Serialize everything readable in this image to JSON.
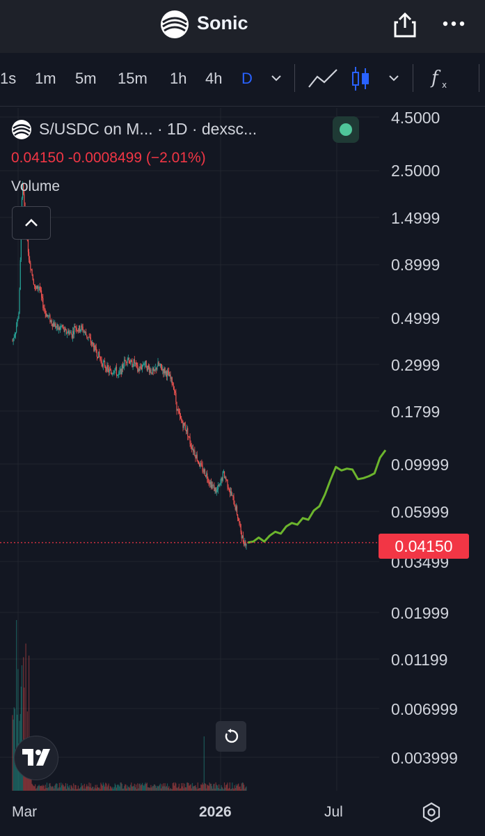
{
  "header": {
    "title": "Sonic"
  },
  "toolbar": {
    "timeframes": [
      "1s",
      "1m",
      "5m",
      "15m",
      "1h",
      "4h",
      "D"
    ],
    "active_timeframe": "D"
  },
  "legend": {
    "title": "S/USDC on M... · 1D · dexsc...",
    "price_line": "0.04150  -0.0008499 (−2.01%)",
    "volume_label": "Volume"
  },
  "price_axis": [
    "4.5000",
    "2.5000",
    "1.4999",
    "0.8999",
    "0.4999",
    "0.2999",
    "0.1799",
    "0.09999",
    "0.05999",
    "0.03499",
    "0.01999",
    "0.01199",
    "0.006999",
    "0.003999"
  ],
  "current_price": "0.04150",
  "time_axis": [
    "Mar",
    "2026",
    "Jul"
  ],
  "colors": {
    "up": "#26a69a",
    "down": "#ef5350",
    "projection": "#6cb52d",
    "accent": "#2962ff",
    "price_tag": "#f23645"
  },
  "chart_data": {
    "type": "line",
    "title": "S/USDC on M... · 1D · dexsc...",
    "xlabel": "",
    "ylabel": "",
    "y_scale": "log",
    "ylim": [
      0.0035,
      5.5
    ],
    "x_ticks": [
      "Mar",
      "2026",
      "Jul"
    ],
    "series": [
      {
        "values": [
          0.42,
          0.48,
          0.6,
          2.6,
          1.6,
          1.1,
          0.9,
          0.75,
          0.8,
          0.66,
          0.58,
          0.55,
          0.52,
          0.5,
          0.48,
          0.5,
          0.46,
          0.47,
          0.45,
          0.5,
          0.48,
          0.49,
          0.46,
          0.44,
          0.41,
          0.38,
          0.36,
          0.33,
          0.32,
          0.3,
          0.29,
          0.31,
          0.28,
          0.3,
          0.33,
          0.35,
          0.32,
          0.33,
          0.3,
          0.31,
          0.33,
          0.31,
          0.3,
          0.29,
          0.32,
          0.31,
          0.3,
          0.29,
          0.27,
          0.25,
          0.19,
          0.17,
          0.16,
          0.15,
          0.13,
          0.12,
          0.11,
          0.1,
          0.095,
          0.09,
          0.083,
          0.078,
          0.075,
          0.08,
          0.092,
          0.085,
          0.075,
          0.068,
          0.06,
          0.05,
          0.0425,
          0.0415
        ]
      },
      {
        "values": [
          0.0415,
          0.042,
          0.044,
          0.042,
          0.045,
          0.047,
          0.046,
          0.05,
          0.052,
          0.051,
          0.055,
          0.054,
          0.06,
          0.063,
          0.072,
          0.085,
          0.099,
          0.095,
          0.097,
          0.096,
          0.086,
          0.087,
          0.089,
          0.092,
          0.11,
          0.12
        ]
      }
    ]
  }
}
